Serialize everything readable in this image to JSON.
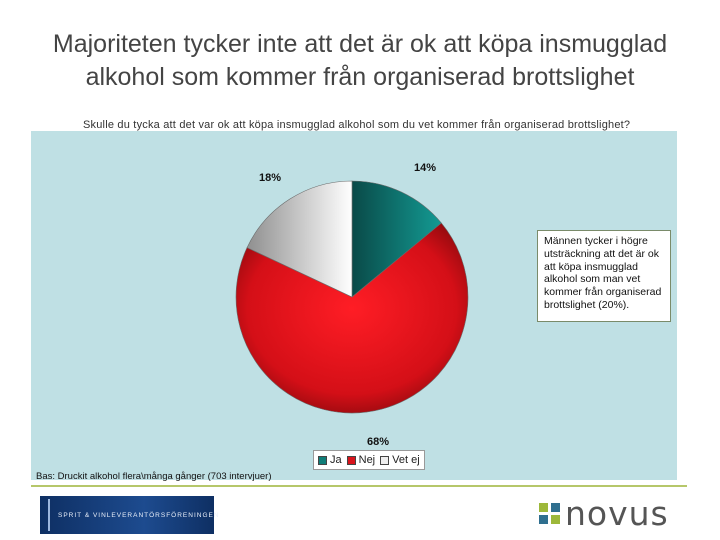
{
  "title": {
    "line1": "Majoriteten tycker inte att det är ok att köpa insmugglad",
    "line2": "alkohol som kommer från organiserad brottslighet"
  },
  "question": "Skulle du tycka att det var ok att köpa insmugglad alkohol som du vet kommer från organiserad brottslighet?",
  "note": "Männen tycker i högre utsträckning att det är ok att köpa insmugglad alkohol som man vet kommer från organiserad brottslighet (20%).",
  "base": "Bas: Druckit alkohol flera\\många gånger (703 intervjuer)",
  "logos": {
    "spirit": "SPRIT & VINLEVERANTÖRSFÖRENINGEN",
    "novus": "novus"
  },
  "chart_data": {
    "type": "pie",
    "title": "Skulle du tycka att det var ok att köpa insmugglad alkohol som du vet kommer från organiserad brottslighet?",
    "slices": [
      {
        "name": "Ja",
        "value": 14,
        "label": "14%",
        "color": "#0f7d78"
      },
      {
        "name": "Nej",
        "value": 68,
        "label": "68%",
        "color": "#d9141c"
      },
      {
        "name": "Vet ej",
        "value": 18,
        "label": "18%",
        "color": "#d6d6d6"
      }
    ],
    "legend_position": "bottom"
  }
}
